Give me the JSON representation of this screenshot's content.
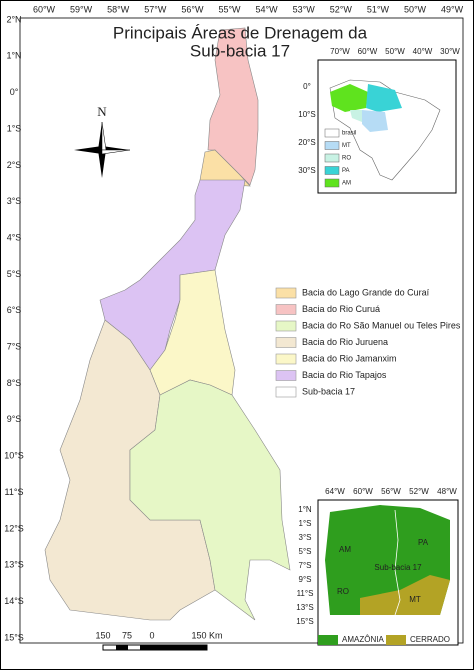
{
  "title": [
    "Principais Áreas de Drenagem da",
    "Sub-bacia 17"
  ],
  "north": "N",
  "longitudes": [
    "60°W",
    "59°W",
    "58°W",
    "57°W",
    "56°W",
    "55°W",
    "54°W",
    "53°W",
    "52°W",
    "51°W",
    "50°W",
    "49°W"
  ],
  "latitudes": [
    "2°N",
    "1°N",
    "0°",
    "1°S",
    "2°S",
    "3°S",
    "4°S",
    "5°S",
    "6°S",
    "7°S",
    "8°S",
    "9°S",
    "10°S",
    "11°S",
    "12°S",
    "13°S",
    "14°S",
    "15°S"
  ],
  "legend": [
    {
      "label": "Bacia do Lago Grande do Curaí",
      "color": "#fbe0a6"
    },
    {
      "label": "Bacia do Rio Curuá",
      "color": "#f7c3c3"
    },
    {
      "label": "Bacia do Ro São Manuel ou Teles Pires",
      "color": "#e6f7c6"
    },
    {
      "label": "Bacia do Rio Juruena",
      "color": "#f3e8d2"
    },
    {
      "label": "Bacia do Rio Jamanxim",
      "color": "#fbf7c8"
    },
    {
      "label": "Bacia do Rio Tapajos",
      "color": "#dcc3f3"
    },
    {
      "label": "Sub-bacia 17",
      "color": "#ffffff"
    }
  ],
  "inset_brazil": {
    "longitudes": [
      "70°W",
      "60°W",
      "50°W",
      "40°W",
      "30°W"
    ],
    "latitudes": [
      "0°",
      "10°S",
      "20°S",
      "30°S"
    ],
    "legend": [
      {
        "label": "brasil",
        "color": "#ffffff"
      },
      {
        "label": "MT",
        "color": "#b6dcf5"
      },
      {
        "label": "RO",
        "color": "#c8f2e4"
      },
      {
        "label": "PA",
        "color": "#39d3d6"
      },
      {
        "label": "AM",
        "color": "#5fe31e"
      }
    ]
  },
  "inset_biomes": {
    "longitudes": [
      "64°W",
      "60°W",
      "56°W",
      "52°W",
      "48°W"
    ],
    "latitudes": [
      "1°N",
      "1°S",
      "3°S",
      "5°S",
      "7°S",
      "9°S",
      "11°S",
      "13°S",
      "15°S"
    ],
    "regions": [
      "AM",
      "PA",
      "RO",
      "MT",
      "Sub-bacia 17"
    ],
    "legend": [
      {
        "label": "AMAZÔNIA",
        "color": "#2f9e1e"
      },
      {
        "label": "CERRADO",
        "color": "#b3a325"
      }
    ]
  },
  "scale": [
    "150",
    "75",
    "0",
    "150 Km"
  ]
}
